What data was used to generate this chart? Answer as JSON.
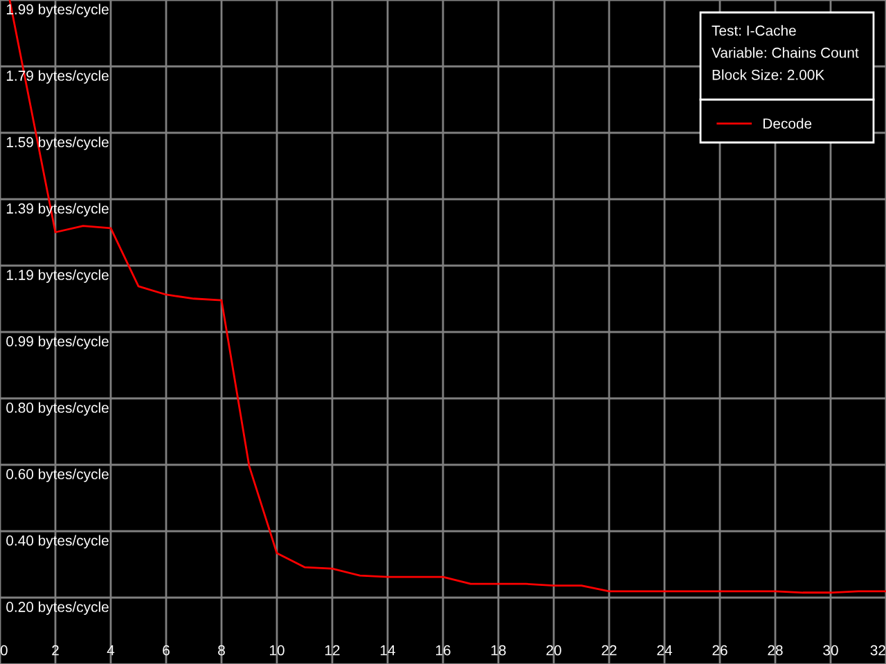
{
  "chart_data": {
    "type": "line",
    "x": [
      0.35,
      2,
      3,
      4,
      5,
      6,
      7,
      8,
      9,
      10,
      11,
      12,
      13,
      14,
      15,
      16,
      17,
      18,
      19,
      20,
      21,
      22,
      23,
      24,
      25,
      26,
      27,
      28,
      29,
      30,
      31,
      32
    ],
    "series": [
      {
        "name": "Decode",
        "color": "#ff0000",
        "values": [
          1.99,
          1.294,
          1.313,
          1.306,
          1.132,
          1.107,
          1.095,
          1.09,
          0.593,
          0.332,
          0.29,
          0.286,
          0.265,
          0.261,
          0.261,
          0.261,
          0.24,
          0.24,
          0.24,
          0.235,
          0.235,
          0.218,
          0.218,
          0.218,
          0.218,
          0.218,
          0.218,
          0.218,
          0.214,
          0.214,
          0.218,
          0.218
        ]
      }
    ],
    "xlim": [
      0,
      32
    ],
    "xticks": [
      0,
      2,
      4,
      6,
      8,
      10,
      12,
      14,
      16,
      18,
      20,
      22,
      24,
      26,
      28,
      30,
      32
    ],
    "ylim": [
      0,
      1.99
    ],
    "yticks": [
      {
        "value": 0.199,
        "label": "0.20 bytes/cycle"
      },
      {
        "value": 0.398,
        "label": "0.40 bytes/cycle"
      },
      {
        "value": 0.597,
        "label": "0.60 bytes/cycle"
      },
      {
        "value": 0.796,
        "label": "0.80 bytes/cycle"
      },
      {
        "value": 0.995,
        "label": "0.99 bytes/cycle"
      },
      {
        "value": 1.194,
        "label": "1.19 bytes/cycle"
      },
      {
        "value": 1.393,
        "label": "1.39 bytes/cycle"
      },
      {
        "value": 1.592,
        "label": "1.59 bytes/cycle"
      },
      {
        "value": 1.791,
        "label": "1.79 bytes/cycle"
      },
      {
        "value": 1.99,
        "label": "1.99 bytes/cycle"
      }
    ],
    "grid": true,
    "legend": "top right",
    "marker": "none",
    "line_style": "solid",
    "annotations": [
      "Test: I-Cache",
      "Variable: Chains Count",
      "Block Size: 2.00K"
    ]
  }
}
